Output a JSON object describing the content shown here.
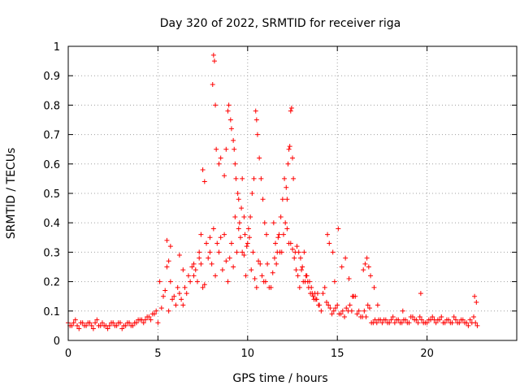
{
  "chart_data": {
    "type": "scatter",
    "title": "Day 320 of 2022, SRMTID for receiver riga",
    "xlabel": "GPS time / hours",
    "ylabel": "SRMTID / TECUs",
    "xlim": [
      0,
      25
    ],
    "ylim": [
      0,
      1
    ],
    "x_ticks": [
      "0",
      "5",
      "10",
      "15",
      "20"
    ],
    "x_tick_values": [
      0,
      5,
      10,
      15,
      20
    ],
    "y_ticks": [
      "0",
      "0.1",
      "0.2",
      "0.3",
      "0.4",
      "0.5",
      "0.6",
      "0.7",
      "0.8",
      "0.9",
      "1"
    ],
    "y_tick_values": [
      0,
      0.1,
      0.2,
      0.3,
      0.4,
      0.5,
      0.6,
      0.7,
      0.8,
      0.9,
      1
    ],
    "grid": true,
    "marker": "+",
    "color": "#ff0000",
    "series": [
      {
        "name": "SRMTID",
        "x": [
          0.0,
          0.2,
          0.4,
          0.6,
          0.8,
          1.0,
          1.2,
          1.4,
          1.6,
          1.8,
          2.0,
          2.2,
          2.4,
          2.6,
          2.8,
          3.0,
          3.2,
          3.4,
          3.6,
          3.8,
          4.0,
          4.2,
          4.4,
          4.6,
          4.8,
          5.0,
          5.2,
          5.4,
          5.6,
          5.8,
          6.0,
          6.2,
          6.4,
          6.6,
          6.8,
          7.0,
          7.2,
          7.4,
          7.6,
          7.8,
          8.0,
          8.2,
          8.4,
          8.6,
          8.8,
          9.0,
          9.2,
          9.4,
          9.6,
          9.8,
          10.0,
          10.2,
          10.4,
          10.6,
          10.8,
          11.0,
          11.2,
          11.4,
          11.6,
          11.8,
          12.0,
          12.2,
          12.4,
          12.6,
          12.8,
          13.0,
          13.2,
          13.4,
          13.6,
          13.8,
          14.0,
          14.2,
          14.4,
          14.6,
          14.8,
          15.0,
          15.2,
          15.4,
          15.6,
          15.8,
          16.0,
          16.2,
          16.4,
          16.6,
          16.8,
          17.0,
          17.2,
          17.4,
          17.6,
          17.8,
          18.0,
          18.2,
          18.4,
          18.6,
          18.8,
          19.0,
          19.2,
          19.4,
          19.6,
          19.8,
          20.0,
          20.2,
          20.4,
          20.6,
          20.8,
          21.0,
          21.2,
          21.4,
          21.6,
          21.8,
          22.0,
          22.2,
          22.4,
          22.6,
          22.8,
          0.1,
          0.3,
          0.5,
          0.7,
          0.9,
          1.1,
          1.3,
          1.5,
          1.7,
          1.9,
          2.1,
          2.3,
          2.5,
          2.7,
          2.9,
          3.1,
          3.3,
          3.5,
          3.7,
          3.9,
          4.1,
          4.3,
          4.5,
          4.7,
          4.9,
          5.1,
          5.3,
          5.5,
          5.7,
          5.9,
          6.1,
          6.3,
          6.5,
          6.7,
          6.9,
          7.1,
          7.3,
          7.5,
          7.7,
          7.9,
          8.1,
          8.3,
          8.5,
          8.7,
          8.9,
          9.1,
          9.3,
          9.5,
          9.7,
          9.9,
          10.1,
          10.3,
          10.5,
          10.7,
          10.9,
          11.1,
          11.3,
          11.5,
          11.7,
          11.9,
          12.1,
          12.3,
          12.5,
          12.7,
          12.9,
          13.1,
          13.3,
          13.5,
          13.7,
          13.9,
          14.1,
          14.3,
          14.5,
          14.7,
          14.9,
          15.1,
          15.3,
          15.5,
          15.7,
          15.9,
          16.1,
          16.3,
          16.5,
          16.7,
          16.9,
          17.1,
          17.3,
          17.5,
          17.7,
          17.9,
          18.1,
          18.3,
          18.5,
          18.7,
          18.9,
          19.1,
          19.3,
          19.5,
          19.7,
          19.9,
          20.1,
          20.3,
          20.5,
          20.7,
          20.9,
          21.1,
          21.3,
          21.5,
          21.7,
          21.9,
          22.1,
          22.3,
          22.5,
          22.7,
          5.5,
          5.6,
          5.7,
          6.2,
          6.4,
          7.0,
          7.3,
          7.4,
          7.5,
          7.6,
          7.9,
          8.05,
          8.1,
          8.15,
          8.2,
          8.25,
          8.4,
          8.5,
          8.7,
          8.8,
          8.9,
          8.95,
          9.05,
          9.1,
          9.2,
          9.25,
          9.3,
          9.35,
          9.45,
          9.5,
          9.55,
          9.65,
          9.7,
          9.8,
          9.85,
          9.95,
          10.05,
          10.15,
          10.25,
          10.35,
          10.45,
          10.5,
          10.55,
          10.65,
          10.75,
          10.85,
          10.95,
          11.05,
          11.45,
          11.55,
          11.65,
          11.75,
          11.85,
          11.95,
          12.05,
          12.15,
          12.2,
          12.25,
          12.3,
          12.35,
          12.4,
          12.45,
          12.5,
          12.55,
          12.65,
          12.75,
          12.85,
          12.95,
          13.05,
          13.15,
          13.25,
          13.35,
          13.45,
          13.55,
          13.65,
          13.75,
          13.85,
          13.95,
          14.45,
          14.55,
          14.75,
          14.85,
          15.05,
          15.25,
          15.45,
          15.65,
          15.85,
          16.45,
          16.55,
          16.65,
          16.75,
          16.85,
          17.05,
          17.25,
          18.65,
          19.65,
          22.65,
          22.75
        ],
        "y": [
          0.06,
          0.05,
          0.07,
          0.04,
          0.06,
          0.05,
          0.06,
          0.04,
          0.07,
          0.05,
          0.05,
          0.04,
          0.06,
          0.05,
          0.06,
          0.04,
          0.05,
          0.06,
          0.05,
          0.06,
          0.07,
          0.06,
          0.08,
          0.07,
          0.09,
          0.06,
          0.11,
          0.17,
          0.1,
          0.14,
          0.12,
          0.16,
          0.12,
          0.16,
          0.2,
          0.22,
          0.2,
          0.26,
          0.19,
          0.28,
          0.26,
          0.22,
          0.3,
          0.24,
          0.27,
          0.28,
          0.25,
          0.3,
          0.35,
          0.29,
          0.33,
          0.24,
          0.21,
          0.27,
          0.22,
          0.2,
          0.18,
          0.23,
          0.26,
          0.3,
          0.36,
          0.38,
          0.33,
          0.28,
          0.22,
          0.24,
          0.2,
          0.18,
          0.16,
          0.14,
          0.12,
          0.16,
          0.13,
          0.11,
          0.1,
          0.12,
          0.09,
          0.08,
          0.1,
          0.1,
          0.15,
          0.1,
          0.08,
          0.08,
          0.11,
          0.06,
          0.06,
          0.07,
          0.07,
          0.06,
          0.07,
          0.06,
          0.07,
          0.06,
          0.07,
          0.06,
          0.08,
          0.07,
          0.08,
          0.06,
          0.06,
          0.07,
          0.07,
          0.07,
          0.08,
          0.06,
          0.07,
          0.06,
          0.07,
          0.06,
          0.07,
          0.06,
          0.07,
          0.08,
          0.05,
          0.05,
          0.06,
          0.05,
          0.06,
          0.05,
          0.06,
          0.05,
          0.06,
          0.05,
          0.06,
          0.05,
          0.05,
          0.06,
          0.05,
          0.06,
          0.05,
          0.06,
          0.05,
          0.06,
          0.07,
          0.07,
          0.07,
          0.08,
          0.09,
          0.1,
          0.2,
          0.15,
          0.25,
          0.2,
          0.15,
          0.18,
          0.14,
          0.18,
          0.22,
          0.25,
          0.24,
          0.28,
          0.18,
          0.33,
          0.3,
          0.38,
          0.33,
          0.35,
          0.36,
          0.2,
          0.33,
          0.42,
          0.38,
          0.3,
          0.22,
          0.35,
          0.3,
          0.18,
          0.26,
          0.2,
          0.26,
          0.18,
          0.28,
          0.35,
          0.3,
          0.4,
          0.33,
          0.31,
          0.24,
          0.18,
          0.2,
          0.22,
          0.16,
          0.14,
          0.16,
          0.1,
          0.18,
          0.12,
          0.09,
          0.11,
          0.09,
          0.1,
          0.11,
          0.12,
          0.15,
          0.09,
          0.08,
          0.1,
          0.12,
          0.06,
          0.07,
          0.07,
          0.06,
          0.07,
          0.06,
          0.08,
          0.07,
          0.06,
          0.07,
          0.06,
          0.08,
          0.07,
          0.06,
          0.07,
          0.06,
          0.07,
          0.08,
          0.06,
          0.07,
          0.06,
          0.07,
          0.06,
          0.08,
          0.06,
          0.07,
          0.06,
          0.05,
          0.06,
          0.06,
          0.34,
          0.27,
          0.32,
          0.29,
          0.24,
          0.26,
          0.3,
          0.36,
          0.58,
          0.54,
          0.35,
          0.87,
          0.97,
          0.95,
          0.8,
          0.65,
          0.6,
          0.62,
          0.56,
          0.65,
          0.78,
          0.8,
          0.75,
          0.72,
          0.68,
          0.65,
          0.6,
          0.55,
          0.5,
          0.48,
          0.4,
          0.45,
          0.55,
          0.42,
          0.36,
          0.32,
          0.38,
          0.42,
          0.5,
          0.55,
          0.78,
          0.75,
          0.7,
          0.62,
          0.55,
          0.48,
          0.4,
          0.36,
          0.4,
          0.33,
          0.3,
          0.36,
          0.42,
          0.48,
          0.55,
          0.52,
          0.48,
          0.6,
          0.65,
          0.66,
          0.78,
          0.79,
          0.62,
          0.55,
          0.3,
          0.32,
          0.3,
          0.28,
          0.25,
          0.3,
          0.22,
          0.2,
          0.2,
          0.18,
          0.15,
          0.16,
          0.14,
          0.12,
          0.36,
          0.33,
          0.3,
          0.2,
          0.38,
          0.25,
          0.28,
          0.21,
          0.15,
          0.24,
          0.26,
          0.28,
          0.25,
          0.22,
          0.18,
          0.12,
          0.1,
          0.16,
          0.15,
          0.13
        ]
      }
    ]
  }
}
